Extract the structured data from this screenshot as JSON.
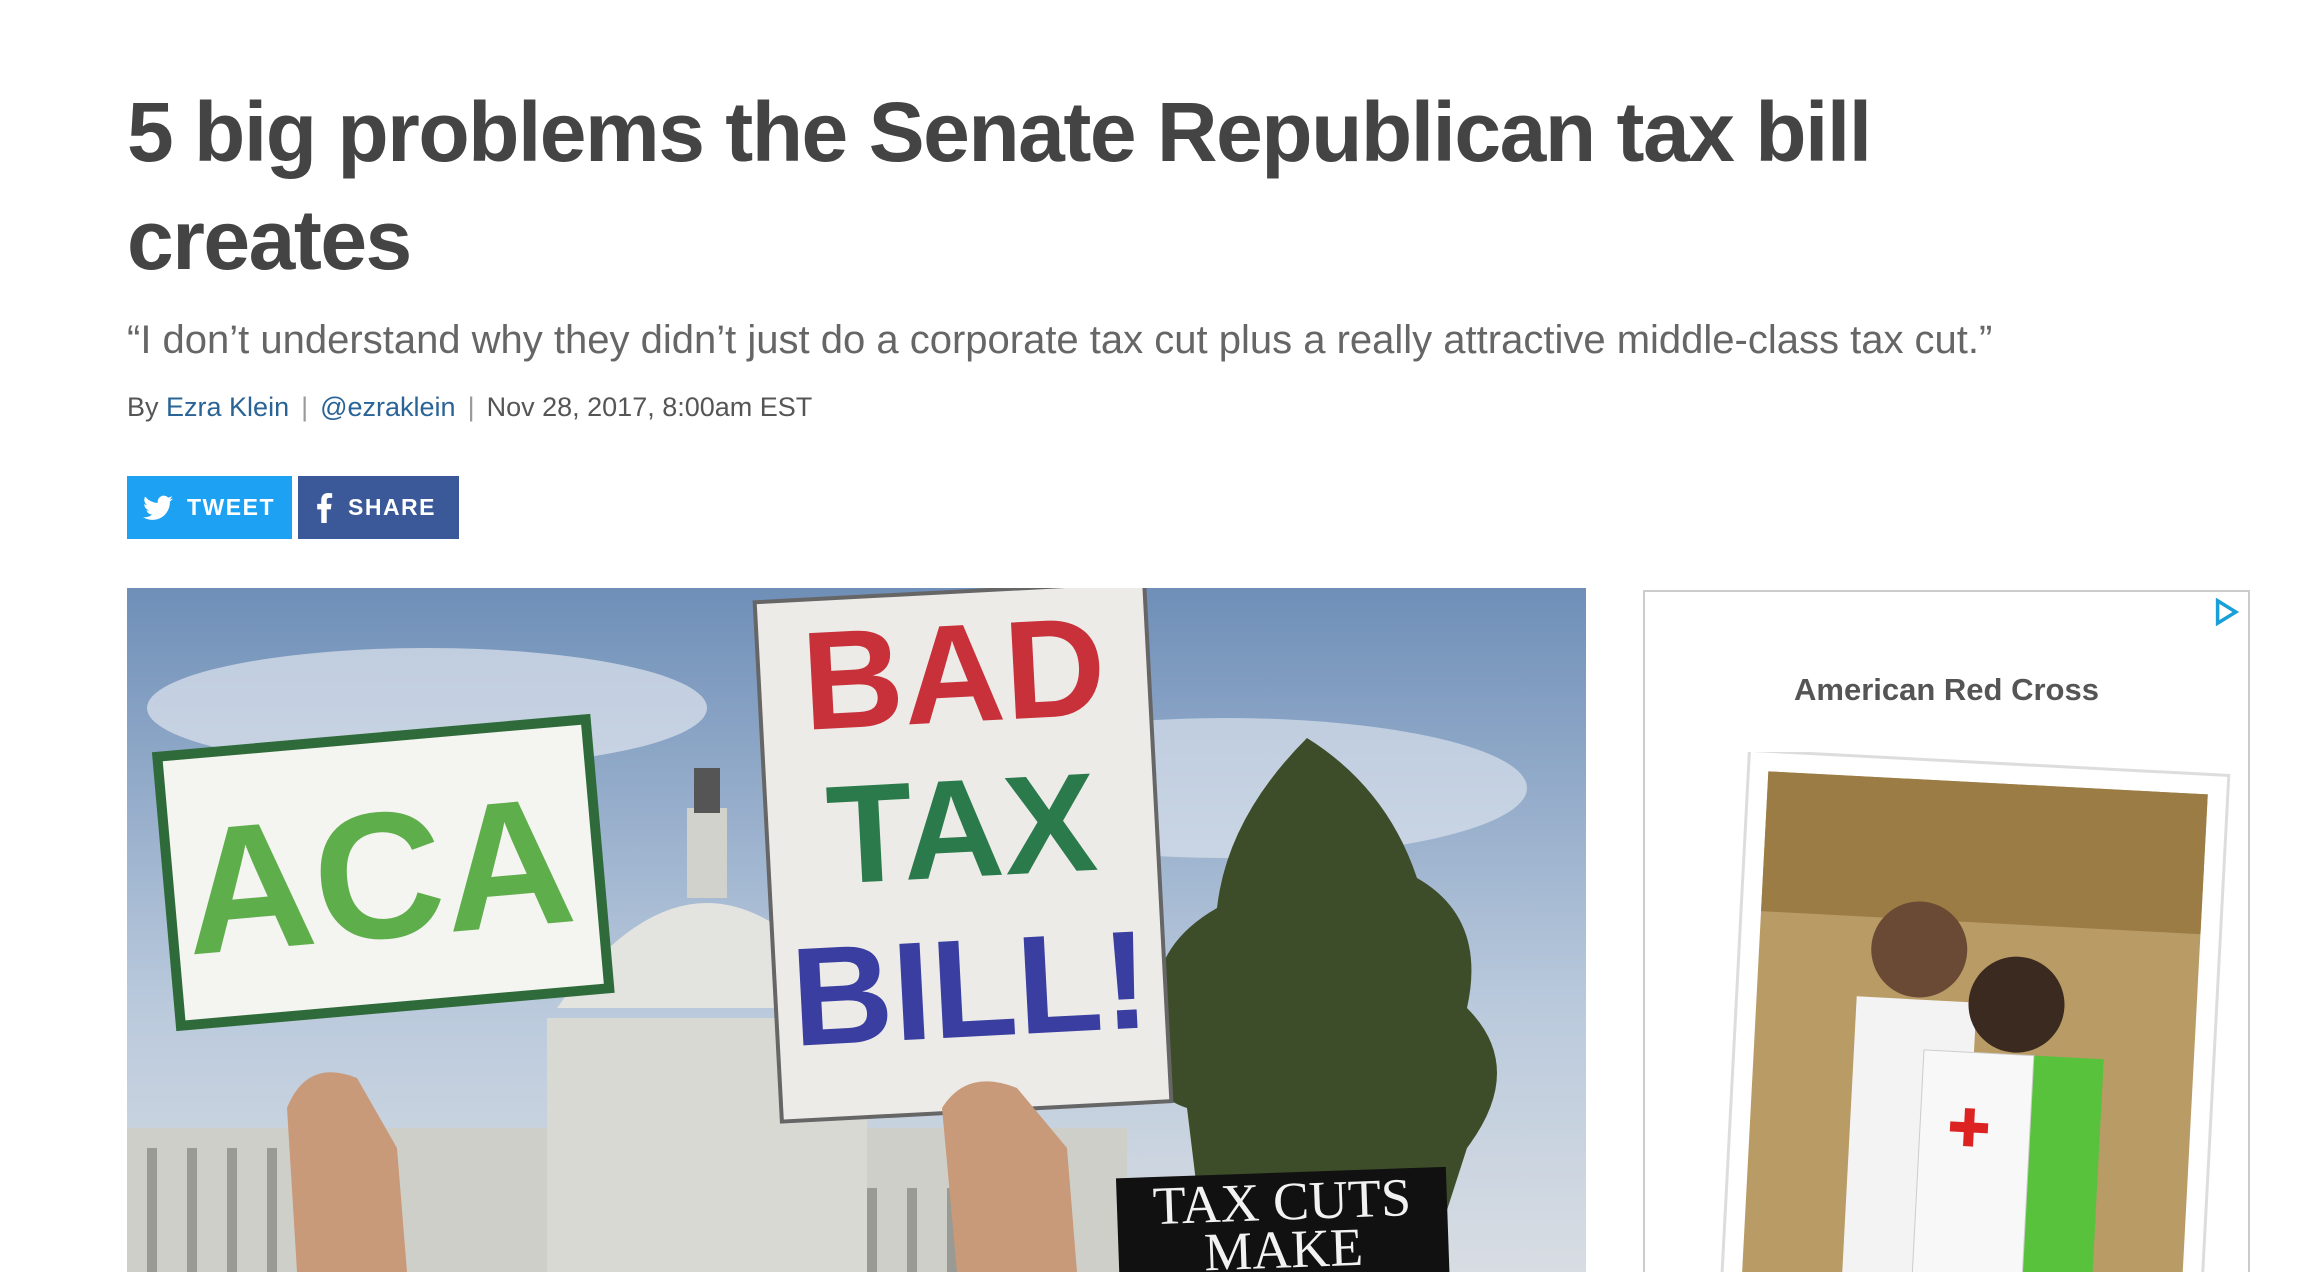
{
  "header": {
    "title": "5 big problems the Senate Republican tax bill creates",
    "subtitle": "“I don’t understand why they didn’t just do a corporate tax cut plus a really attractive middle-class tax cut.”"
  },
  "byline": {
    "by": "By",
    "author": "Ezra Klein",
    "separator": "|",
    "handle": "@ezraklein",
    "date": "Nov 28, 2017, 8:00am EST"
  },
  "share": {
    "tweet": "TWEET",
    "share": "SHARE"
  },
  "photo": {
    "signs": [
      "ACA",
      "BAD",
      "TAX",
      "BILL!",
      "TAX CUTS",
      "MAKE"
    ]
  },
  "ad": {
    "label": "American Red Cross"
  }
}
